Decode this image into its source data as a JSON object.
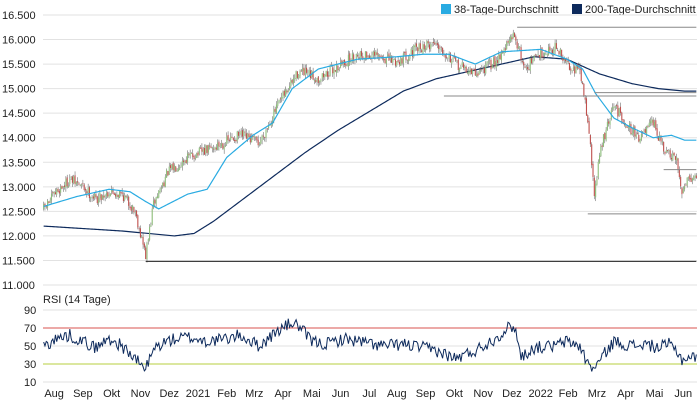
{
  "chart_data": [
    {
      "type": "candlestick",
      "title": "",
      "ylim": [
        11000,
        16500
      ],
      "yticks": [
        "16.500",
        "16.000",
        "15.500",
        "15.000",
        "14.500",
        "14.000",
        "13.500",
        "13.000",
        "12.500",
        "12.000",
        "11.500",
        "11.000"
      ],
      "ytick_values": [
        16500,
        16000,
        15500,
        15000,
        14500,
        14000,
        13500,
        13000,
        12500,
        12000,
        11500,
        11000
      ],
      "grid": true,
      "legend": {
        "placement": "top-right",
        "entries": [
          {
            "label": "38-Tage-Durchschnitt",
            "color": "#29ABE2"
          },
          {
            "label": "200-Tage-Durchschnitt",
            "color": "#0D2A5C"
          }
        ]
      },
      "colors": {
        "up": "#8DBE7A",
        "down": "#C0504D",
        "ma38": "#29ABE2",
        "ma200": "#0D2A5C"
      },
      "price_anchors": [
        [
          0,
          12550
        ],
        [
          10,
          12900
        ],
        [
          20,
          13150
        ],
        [
          30,
          13000
        ],
        [
          40,
          12750
        ],
        [
          50,
          12900
        ],
        [
          60,
          12850
        ],
        [
          70,
          12500
        ],
        [
          78,
          11600
        ],
        [
          84,
          12650
        ],
        [
          95,
          13300
        ],
        [
          110,
          13600
        ],
        [
          130,
          13800
        ],
        [
          150,
          14050
        ],
        [
          165,
          13900
        ],
        [
          180,
          14700
        ],
        [
          195,
          15350
        ],
        [
          210,
          15200
        ],
        [
          225,
          15450
        ],
        [
          240,
          15700
        ],
        [
          255,
          15650
        ],
        [
          270,
          15550
        ],
        [
          285,
          15800
        ],
        [
          300,
          15950
        ],
        [
          315,
          15500
        ],
        [
          330,
          15300
        ],
        [
          345,
          15550
        ],
        [
          360,
          16100
        ],
        [
          368,
          15400
        ],
        [
          378,
          15700
        ],
        [
          392,
          15850
        ],
        [
          398,
          15550
        ],
        [
          410,
          15350
        ],
        [
          416,
          14400
        ],
        [
          421,
          12850
        ],
        [
          426,
          13800
        ],
        [
          436,
          14650
        ],
        [
          448,
          14200
        ],
        [
          456,
          14000
        ],
        [
          466,
          14300
        ],
        [
          474,
          13750
        ],
        [
          484,
          13500
        ],
        [
          488,
          12900
        ],
        [
          492,
          13200
        ]
      ],
      "ma38_anchors": [
        [
          0,
          12600
        ],
        [
          25,
          12800
        ],
        [
          50,
          12950
        ],
        [
          66,
          12900
        ],
        [
          78,
          12700
        ],
        [
          88,
          12550
        ],
        [
          110,
          12850
        ],
        [
          125,
          12950
        ],
        [
          140,
          13600
        ],
        [
          160,
          14050
        ],
        [
          175,
          14300
        ],
        [
          190,
          15000
        ],
        [
          210,
          15400
        ],
        [
          240,
          15600
        ],
        [
          270,
          15650
        ],
        [
          290,
          15700
        ],
        [
          310,
          15700
        ],
        [
          330,
          15500
        ],
        [
          350,
          15750
        ],
        [
          380,
          15800
        ],
        [
          400,
          15600
        ],
        [
          412,
          15400
        ],
        [
          422,
          14900
        ],
        [
          436,
          14400
        ],
        [
          450,
          14200
        ],
        [
          466,
          14000
        ],
        [
          480,
          14050
        ],
        [
          490,
          13950
        ]
      ],
      "ma200_anchors": [
        [
          0,
          12200
        ],
        [
          30,
          12150
        ],
        [
          60,
          12100
        ],
        [
          80,
          12050
        ],
        [
          100,
          12000
        ],
        [
          115,
          12050
        ],
        [
          130,
          12300
        ],
        [
          150,
          12700
        ],
        [
          175,
          13200
        ],
        [
          200,
          13700
        ],
        [
          225,
          14150
        ],
        [
          250,
          14550
        ],
        [
          275,
          14950
        ],
        [
          300,
          15200
        ],
        [
          325,
          15350
        ],
        [
          350,
          15500
        ],
        [
          375,
          15650
        ],
        [
          400,
          15600
        ],
        [
          425,
          15300
        ],
        [
          450,
          15100
        ],
        [
          470,
          15000
        ],
        [
          490,
          14950
        ]
      ],
      "support_lines": [
        {
          "value": 11480,
          "x_start": 78,
          "x_end": 499
        },
        {
          "value": 16250,
          "x_start": 362,
          "x_end": 499
        },
        {
          "value": 14850,
          "x_start": 306,
          "x_end": 499
        },
        {
          "value": 14920,
          "x_start": 421,
          "x_end": 499
        },
        {
          "value": 12450,
          "x_start": 416,
          "x_end": 499
        },
        {
          "value": 13350,
          "x_start": 474,
          "x_end": 499
        }
      ]
    },
    {
      "type": "line",
      "title": "RSI (14 Tage)",
      "ylim": [
        10,
        90
      ],
      "yticks": [
        "90",
        "70",
        "50",
        "30",
        "10"
      ],
      "ytick_values": [
        90,
        70,
        50,
        30,
        10
      ],
      "reference_lines": [
        {
          "value": 70,
          "color": "#D9534F"
        },
        {
          "value": 30,
          "color": "#B7CF3F"
        }
      ],
      "series_color": "#0D2A5C",
      "rsi_anchors": [
        [
          0,
          50
        ],
        [
          10,
          58
        ],
        [
          20,
          62
        ],
        [
          30,
          55
        ],
        [
          40,
          48
        ],
        [
          50,
          58
        ],
        [
          60,
          50
        ],
        [
          70,
          35
        ],
        [
          78,
          25
        ],
        [
          85,
          48
        ],
        [
          95,
          56
        ],
        [
          110,
          60
        ],
        [
          125,
          55
        ],
        [
          140,
          58
        ],
        [
          150,
          62
        ],
        [
          165,
          50
        ],
        [
          180,
          68
        ],
        [
          190,
          76
        ],
        [
          195,
          72
        ],
        [
          205,
          55
        ],
        [
          215,
          52
        ],
        [
          230,
          58
        ],
        [
          245,
          54
        ],
        [
          260,
          50
        ],
        [
          275,
          52
        ],
        [
          290,
          48
        ],
        [
          300,
          45
        ],
        [
          315,
          36
        ],
        [
          330,
          45
        ],
        [
          345,
          58
        ],
        [
          355,
          70
        ],
        [
          360,
          72
        ],
        [
          365,
          38
        ],
        [
          375,
          48
        ],
        [
          390,
          50
        ],
        [
          400,
          55
        ],
        [
          410,
          50
        ],
        [
          416,
          30
        ],
        [
          421,
          25
        ],
        [
          428,
          40
        ],
        [
          436,
          55
        ],
        [
          450,
          50
        ],
        [
          460,
          52
        ],
        [
          470,
          48
        ],
        [
          478,
          52
        ],
        [
          484,
          45
        ],
        [
          488,
          35
        ],
        [
          495,
          38
        ]
      ],
      "x_labels": [
        "Aug",
        "Sep",
        "Okt",
        "Nov",
        "Dez",
        "2021",
        "Feb",
        "Mrz",
        "Apr",
        "Mai",
        "Jun",
        "Jul",
        "Aug",
        "Sep",
        "Okt",
        "Nov",
        "Dez",
        "2022",
        "Feb",
        "Mrz",
        "Apr",
        "Mai",
        "Jun"
      ],
      "x_label_positions": [
        8,
        30,
        52,
        74,
        96,
        118,
        140,
        161,
        183,
        205,
        227,
        249,
        270,
        292,
        314,
        336,
        358,
        380,
        401,
        423,
        445,
        467,
        489
      ]
    }
  ]
}
